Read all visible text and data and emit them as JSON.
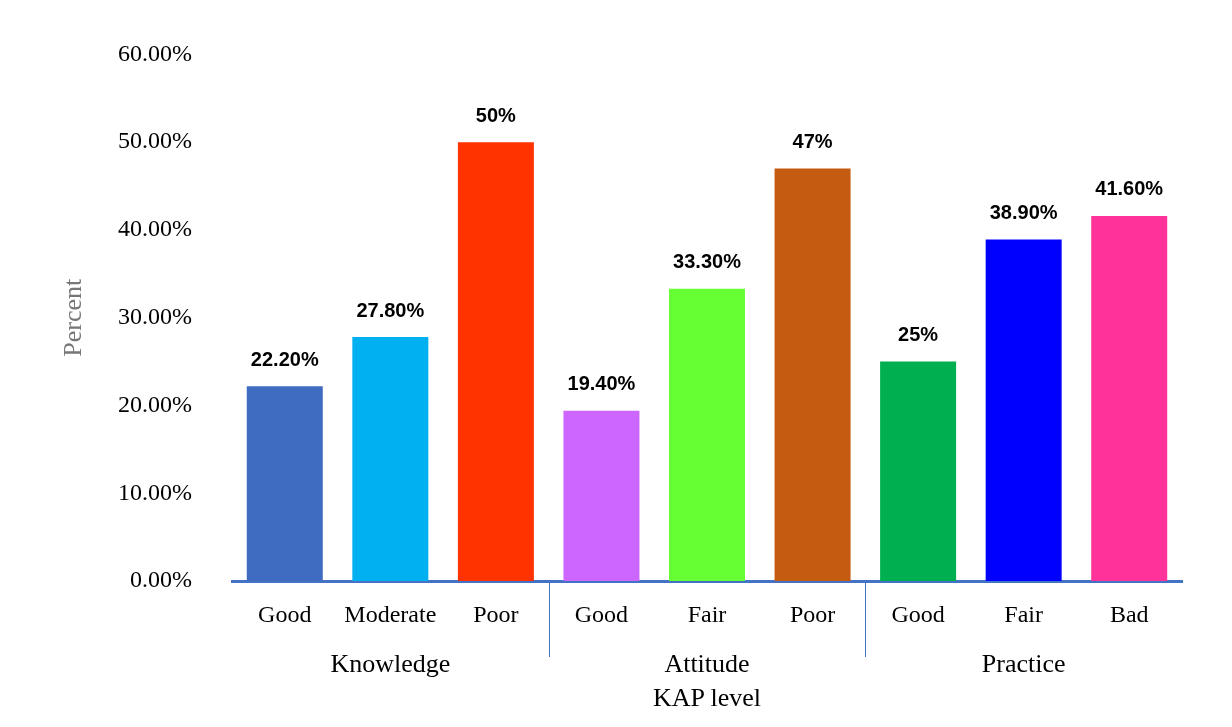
{
  "chart_data": {
    "type": "bar",
    "xlabel": "KAP level",
    "ylabel": "Percent",
    "categories": [
      "Good",
      "Moderate",
      "Poor",
      "Good",
      "Fair",
      "Poor",
      "Good",
      "Fair",
      "Bad"
    ],
    "values": [
      22.2,
      27.8,
      50,
      19.4,
      33.3,
      47,
      25,
      38.9,
      41.6
    ],
    "colors": [
      "#3f6cc0",
      "#00b0f0",
      "#ff3300",
      "#cc66ff",
      "#66ff33",
      "#c55a11",
      "#00b050",
      "#0000ff",
      "#ff3399"
    ],
    "value_labels": [
      "22.20%",
      "27.80%",
      "50%",
      "19.40%",
      "33.30%",
      "47%",
      "25%",
      "38.90%",
      "41.60%"
    ],
    "annotations": [
      "Knowledge",
      "Attitude",
      "Practice"
    ],
    "ylim": [
      0,
      60
    ],
    "yticks": [
      {
        "value": 0,
        "label": "0.00%"
      },
      {
        "value": 10,
        "label": "10.00%"
      },
      {
        "value": 20,
        "label": "20.00%"
      },
      {
        "value": 30,
        "label": "30.00%"
      },
      {
        "value": 40,
        "label": "40.00%"
      },
      {
        "value": 50,
        "label": "50.00%"
      },
      {
        "value": 60,
        "label": "60.00%"
      }
    ],
    "grid": false,
    "legend": false
  }
}
